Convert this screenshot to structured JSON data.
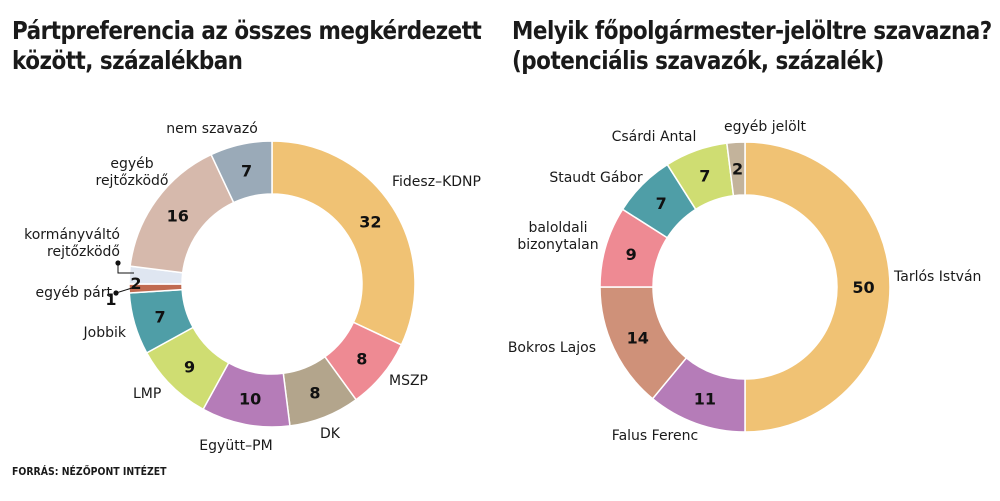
{
  "left_title": [
    "Pártpreferencia az összes megkérdezett",
    "között, százalékban"
  ],
  "right_title": [
    "Melyik főpolgármester-jelöltre szavazna?",
    "(potenciális szavazók, százalék)"
  ],
  "source": "FORRÁS: NÉZŐPONT INTÉZET",
  "chart_data": [
    {
      "type": "pie",
      "title": "Pártpreferencia az összes megkérdezett között, százalékban",
      "donut": true,
      "slices": [
        {
          "label": "Fidesz–KDNP",
          "value": 32,
          "color": "#f0c274"
        },
        {
          "label": "MSZP",
          "value": 8,
          "color": "#ee8a93"
        },
        {
          "label": "DK",
          "value": 8,
          "color": "#b3a58c"
        },
        {
          "label": "Együtt–PM",
          "value": 10,
          "color": "#b57cb8"
        },
        {
          "label": "LMP",
          "value": 9,
          "color": "#cfdd72"
        },
        {
          "label": "Jobbik",
          "value": 7,
          "color": "#4f9ea7"
        },
        {
          "label": "egyéb párt",
          "value": 1,
          "color": "#c06a50"
        },
        {
          "label": "kormányváltó rejtőzködő",
          "value": 2,
          "color": "#dfe6f1"
        },
        {
          "label": "egyéb rejtőzködő",
          "value": 16,
          "color": "#d6b9ac"
        },
        {
          "label": "nem szavazó",
          "value": 7,
          "color": "#9aaab8"
        }
      ]
    },
    {
      "type": "pie",
      "title": "Melyik főpolgármester-jelöltre szavazna? (potenciális szavazók, százalék)",
      "donut": true,
      "slices": [
        {
          "label": "Tarlós István",
          "value": 50,
          "color": "#f0c274"
        },
        {
          "label": "Falus Ferenc",
          "value": 11,
          "color": "#b57cb8"
        },
        {
          "label": "Bokros Lajos",
          "value": 14,
          "color": "#cf9179"
        },
        {
          "label": "baloldali bizonytalan",
          "value": 9,
          "color": "#ee8a93"
        },
        {
          "label": "Staudt Gábor",
          "value": 7,
          "color": "#4f9ea7"
        },
        {
          "label": "Csárdi Antal",
          "value": 7,
          "color": "#cfdd72"
        },
        {
          "label": "egyéb jelölt",
          "value": 2,
          "color": "#c3b39b"
        }
      ]
    }
  ]
}
